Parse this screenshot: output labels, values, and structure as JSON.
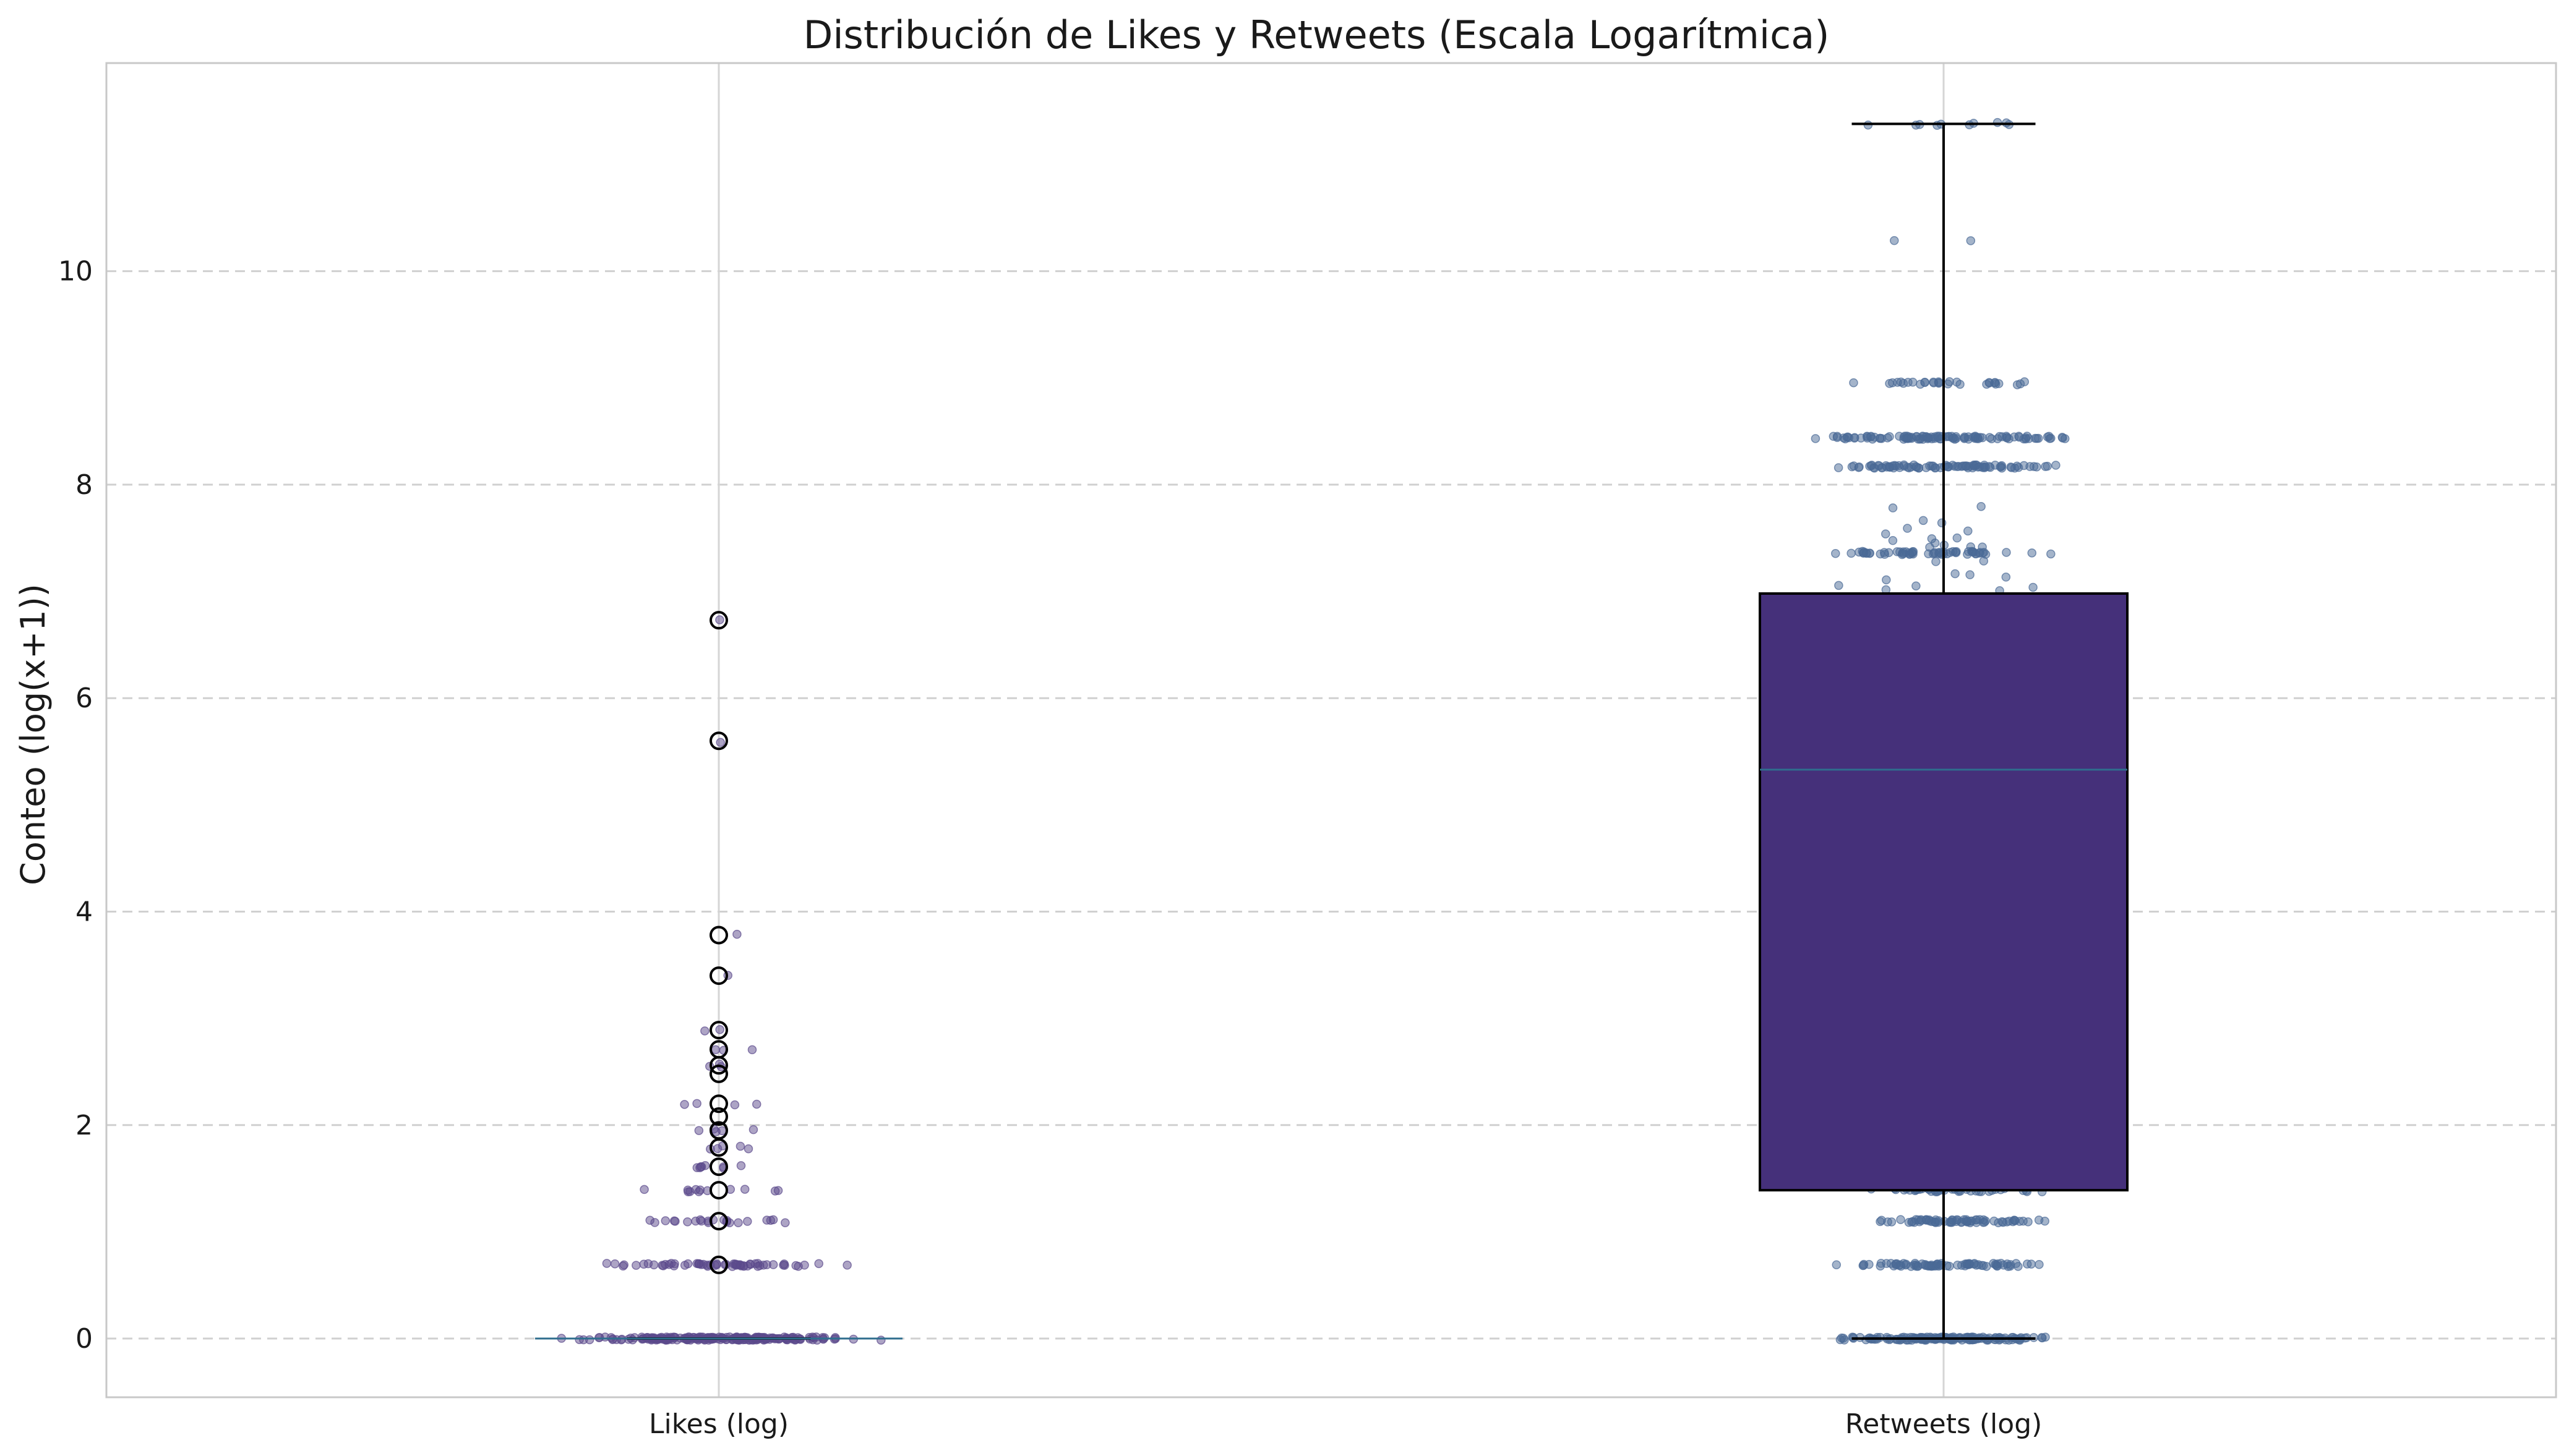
{
  "chart_data": {
    "type": "box",
    "title": "Distribución de Likes y Retweets (Escala Logarítmica)",
    "xlabel": "",
    "ylabel": "Conteo (log(x+1))",
    "ylim": [
      -0.55,
      11.95
    ],
    "yticks": [
      0,
      2,
      4,
      6,
      8,
      10
    ],
    "categories": [
      "Likes (log)",
      "Retweets (log)"
    ],
    "grid": true,
    "box_color": "#45307a",
    "median_color": "#2f6e8e",
    "series": [
      {
        "name": "Likes (log)",
        "whisker_low": 0,
        "q1": 0,
        "median": 0,
        "q3": 0,
        "whisker_high": 0,
        "outliers": [
          0.69,
          1.1,
          1.39,
          1.61,
          1.79,
          1.95,
          2.08,
          2.2,
          2.48,
          2.56,
          2.71,
          2.89,
          3.4,
          3.78,
          5.6,
          6.73
        ],
        "jitter_color": "#5b4a8b",
        "jitter_levels": [
          {
            "y": 0,
            "count": 220,
            "spread": 0.12
          },
          {
            "y": 0.69,
            "count": 60,
            "spread": 0.1
          },
          {
            "y": 1.1,
            "count": 22,
            "spread": 0.08
          },
          {
            "y": 1.39,
            "count": 12,
            "spread": 0.06
          },
          {
            "y": 1.61,
            "count": 8,
            "spread": 0.04
          },
          {
            "y": 1.79,
            "count": 5,
            "spread": 0.03
          },
          {
            "y": 1.95,
            "count": 5,
            "spread": 0.03
          },
          {
            "y": 2.2,
            "count": 4,
            "spread": 0.06
          },
          {
            "y": 2.56,
            "count": 3,
            "spread": 0.02
          },
          {
            "y": 2.71,
            "count": 3,
            "spread": 0.04
          },
          {
            "y": 2.89,
            "count": 2,
            "spread": 0.05
          },
          {
            "y": 3.4,
            "count": 1,
            "spread": 0.04
          },
          {
            "y": 3.78,
            "count": 1,
            "spread": 0.02
          },
          {
            "y": 5.6,
            "count": 1,
            "spread": 0.03
          },
          {
            "y": 6.73,
            "count": 1,
            "spread": 0.01
          }
        ]
      },
      {
        "name": "Retweets (log)",
        "whisker_low": 0,
        "q1": 1.39,
        "median": 5.33,
        "q3": 6.98,
        "whisker_high": 11.38,
        "outliers": [],
        "jitter_color": "#4a6a96",
        "jitter_levels": [
          {
            "y": 0,
            "count": 150,
            "spread": 0.1
          },
          {
            "y": 0.69,
            "count": 80,
            "spread": 0.09
          },
          {
            "y": 1.1,
            "count": 70,
            "spread": 0.09
          },
          {
            "y": 1.39,
            "count": 40,
            "spread": 0.08
          },
          {
            "y": 8.17,
            "count": 90,
            "spread": 0.11
          },
          {
            "y": 8.44,
            "count": 110,
            "spread": 0.12
          },
          {
            "y": 8.95,
            "count": 30,
            "spread": 0.1
          },
          {
            "y": 7.36,
            "count": 60,
            "spread": 0.09
          },
          {
            "y": 10.3,
            "count": 2,
            "spread": 0.05
          },
          {
            "y": 11.38,
            "count": 10,
            "spread": 0.07
          }
        ],
        "jitter_range": {
          "y_min": 1.4,
          "y_max": 7.8,
          "count": 220,
          "spread": 0.1
        }
      }
    ]
  }
}
